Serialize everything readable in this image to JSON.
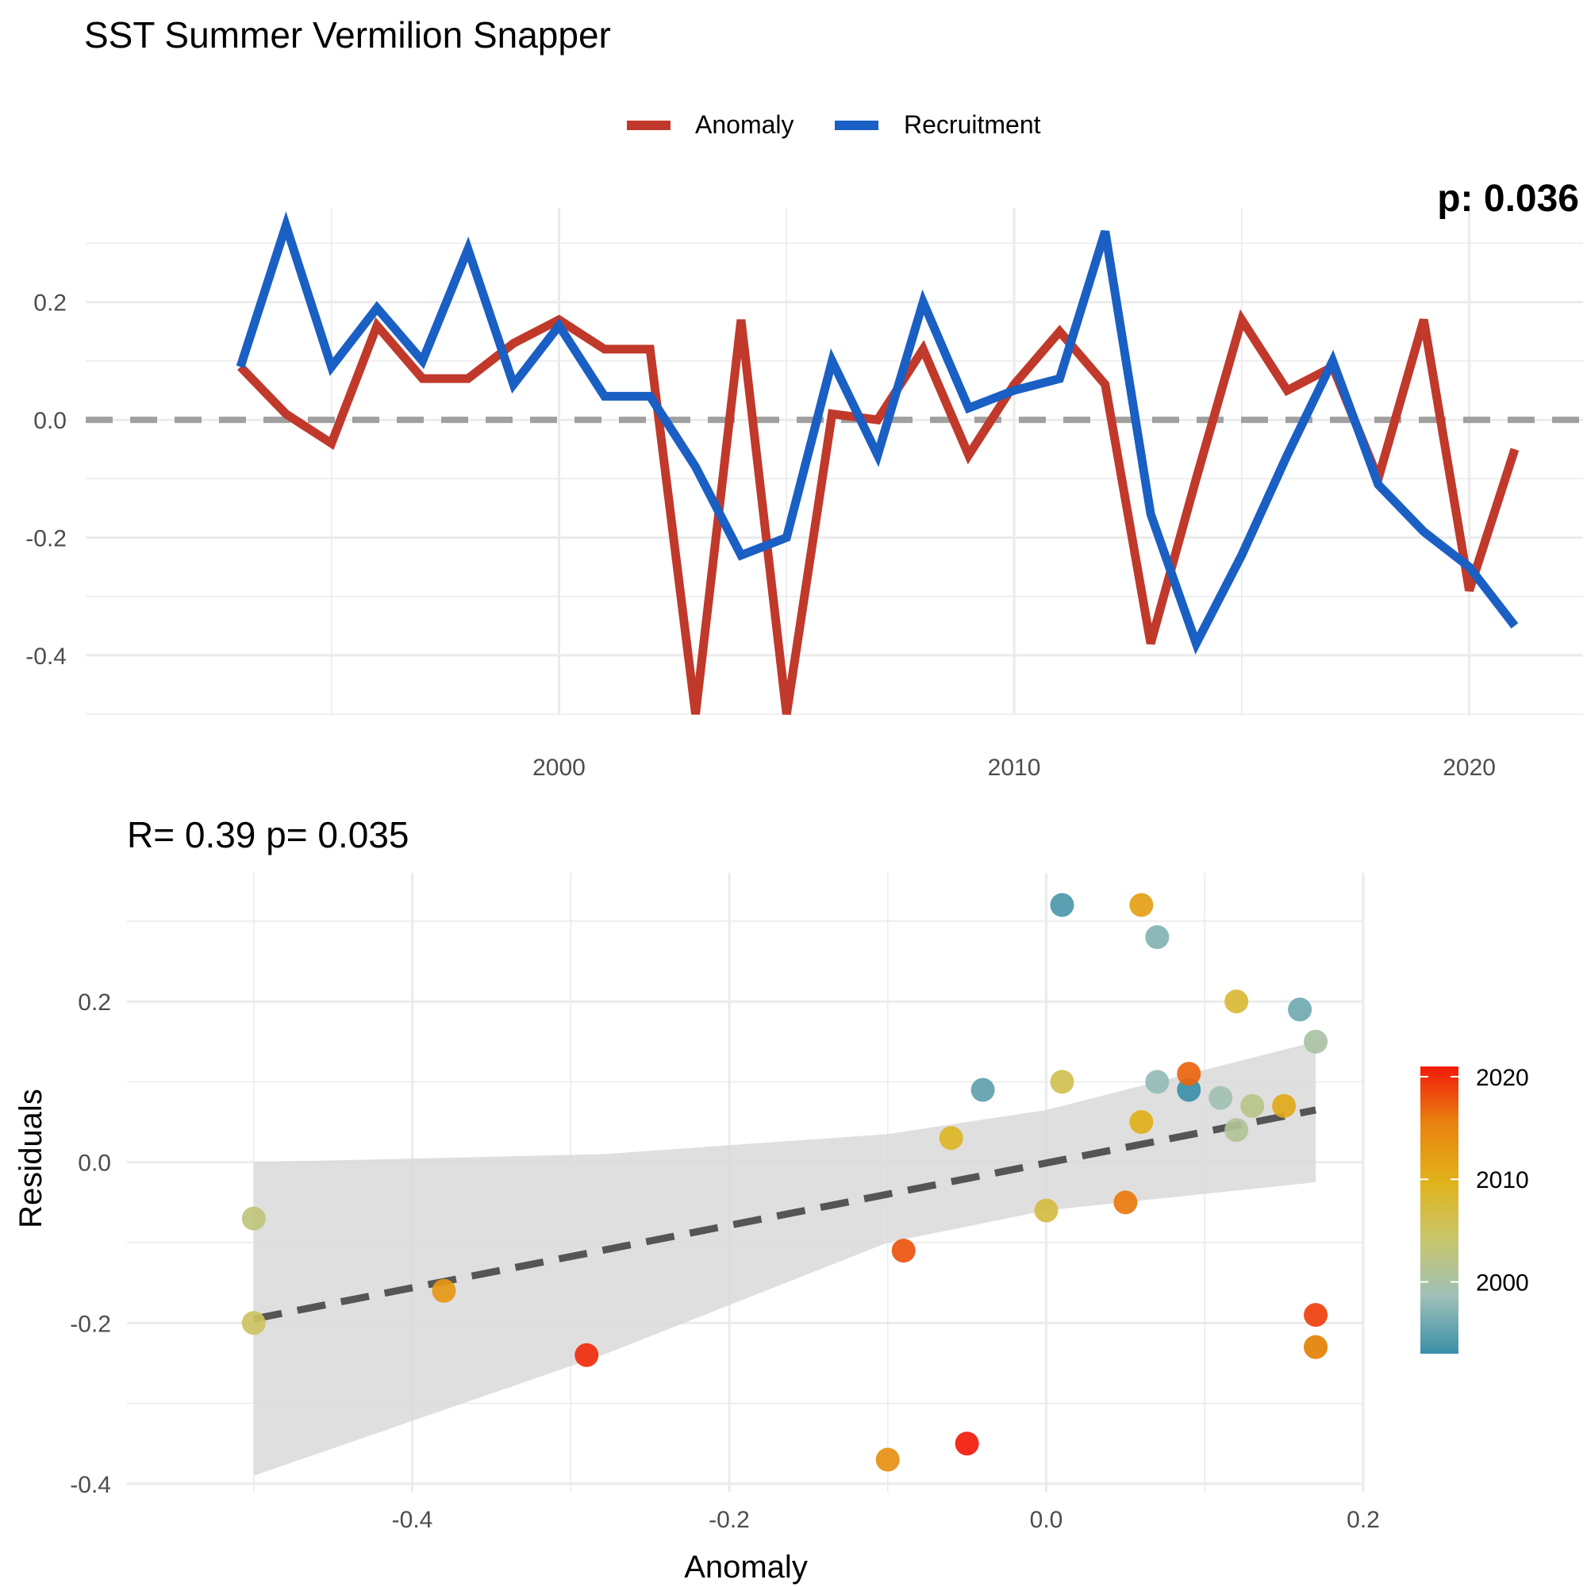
{
  "title": "SST Summer Vermilion Snapper",
  "chart_data": [
    {
      "type": "line",
      "legend_position": "top",
      "x": [
        1993,
        1994,
        1995,
        1996,
        1997,
        1998,
        1999,
        2000,
        2001,
        2002,
        2003,
        2004,
        2005,
        2006,
        2007,
        2008,
        2009,
        2010,
        2011,
        2012,
        2013,
        2014,
        2015,
        2016,
        2017,
        2018,
        2019,
        2020,
        2021
      ],
      "series": [
        {
          "name": "Anomaly",
          "color": "#c0392b",
          "values": [
            0.09,
            0.01,
            -0.04,
            0.16,
            0.07,
            0.07,
            0.13,
            0.17,
            0.12,
            0.12,
            -0.5,
            0.17,
            -0.5,
            0.01,
            0.0,
            0.12,
            -0.06,
            0.06,
            0.15,
            0.06,
            -0.38,
            -0.1,
            0.17,
            0.05,
            0.09,
            -0.1,
            0.17,
            -0.29,
            -0.05
          ]
        },
        {
          "name": "Recruitment",
          "color": "#1a5fc4",
          "values": [
            0.09,
            0.33,
            0.09,
            0.19,
            0.1,
            0.29,
            0.06,
            0.16,
            0.04,
            0.04,
            -0.08,
            -0.23,
            -0.2,
            0.1,
            -0.06,
            0.2,
            0.02,
            0.05,
            0.07,
            0.32,
            -0.16,
            -0.38,
            -0.23,
            -0.06,
            0.1,
            -0.11,
            -0.19,
            -0.25,
            -0.35
          ]
        }
      ],
      "reference_line": 0,
      "xlim": [
        1989.6,
        2022.5
      ],
      "ylim": [
        -0.5,
        0.36
      ],
      "x_ticks": [
        "2000",
        "2010",
        "2020"
      ],
      "x_tick_values": [
        2000,
        2010,
        2020
      ],
      "y_ticks": [
        "0.2",
        "0.0",
        "-0.2",
        "-0.4"
      ],
      "y_tick_values": [
        0.2,
        0.0,
        -0.2,
        -0.4
      ],
      "clipped_annotation": "p: 0.036",
      "grid": true
    },
    {
      "type": "scatter",
      "title": "R= 0.39  p= 0.035",
      "xlabel": "Anomaly",
      "ylabel": "Residuals",
      "xlim": [
        -0.58,
        0.2
      ],
      "ylim": [
        -0.41,
        0.36
      ],
      "x_ticks": [
        "-0.4",
        "-0.2",
        "0.0",
        "0.2"
      ],
      "x_tick_values": [
        -0.4,
        -0.2,
        0.0,
        0.2
      ],
      "y_ticks": [
        "0.2",
        "0.0",
        "-0.2",
        "-0.4"
      ],
      "y_tick_values": [
        0.2,
        0.0,
        -0.2,
        -0.4
      ],
      "grid": true,
      "points": [
        {
          "x": 0.09,
          "y": 0.09,
          "year": 1993
        },
        {
          "x": 0.01,
          "y": 0.32,
          "year": 1994
        },
        {
          "x": -0.04,
          "y": 0.09,
          "year": 1995
        },
        {
          "x": 0.16,
          "y": 0.19,
          "year": 1996
        },
        {
          "x": 0.07,
          "y": 0.28,
          "year": 1997
        },
        {
          "x": 0.07,
          "y": 0.1,
          "year": 1998
        },
        {
          "x": 0.11,
          "y": 0.08,
          "year": 1999
        },
        {
          "x": 0.17,
          "y": 0.15,
          "year": 2000
        },
        {
          "x": 0.12,
          "y": 0.04,
          "year": 2001
        },
        {
          "x": 0.13,
          "y": 0.07,
          "year": 2002
        },
        {
          "x": -0.5,
          "y": -0.07,
          "year": 2003
        },
        {
          "x": 0.17,
          "y": -0.23,
          "year": 2004
        },
        {
          "x": -0.5,
          "y": -0.2,
          "year": 2005
        },
        {
          "x": 0.01,
          "y": 0.1,
          "year": 2006
        },
        {
          "x": 0.0,
          "y": -0.06,
          "year": 2007
        },
        {
          "x": 0.12,
          "y": 0.2,
          "year": 2008
        },
        {
          "x": -0.06,
          "y": 0.03,
          "year": 2009
        },
        {
          "x": 0.06,
          "y": 0.05,
          "year": 2010
        },
        {
          "x": 0.15,
          "y": 0.07,
          "year": 2011
        },
        {
          "x": 0.06,
          "y": 0.32,
          "year": 2012
        },
        {
          "x": -0.38,
          "y": -0.16,
          "year": 2013
        },
        {
          "x": -0.1,
          "y": -0.37,
          "year": 2014
        },
        {
          "x": 0.17,
          "y": -0.23,
          "year": 2015
        },
        {
          "x": 0.05,
          "y": -0.05,
          "year": 2016
        },
        {
          "x": 0.09,
          "y": 0.11,
          "year": 2017
        },
        {
          "x": -0.09,
          "y": -0.11,
          "year": 2018
        },
        {
          "x": 0.17,
          "y": -0.19,
          "year": 2019
        },
        {
          "x": -0.29,
          "y": -0.24,
          "year": 2020
        },
        {
          "x": -0.05,
          "y": -0.35,
          "year": 2021
        }
      ],
      "fit_line": {
        "x": [
          -0.5,
          0.17
        ],
        "y": [
          -0.195,
          0.065
        ],
        "color": "#555555"
      },
      "confidence_band": {
        "x": [
          -0.5,
          -0.28,
          -0.1,
          0.0,
          0.17
        ],
        "upper": [
          0.0,
          0.01,
          0.035,
          0.065,
          0.15
        ],
        "lower": [
          -0.39,
          -0.24,
          -0.1,
          -0.06,
          -0.025
        ],
        "color": "#d9d9d9"
      },
      "colorbar": {
        "ticks": [
          "2020",
          "2010",
          "2000"
        ],
        "tick_values": [
          2020,
          2010,
          2000
        ],
        "range": [
          1993,
          2021
        ],
        "colors": [
          "#3a8fa8",
          "#9fc0b8",
          "#c8c66a",
          "#e0b21a",
          "#e9830f",
          "#f21a0a"
        ]
      }
    }
  ]
}
